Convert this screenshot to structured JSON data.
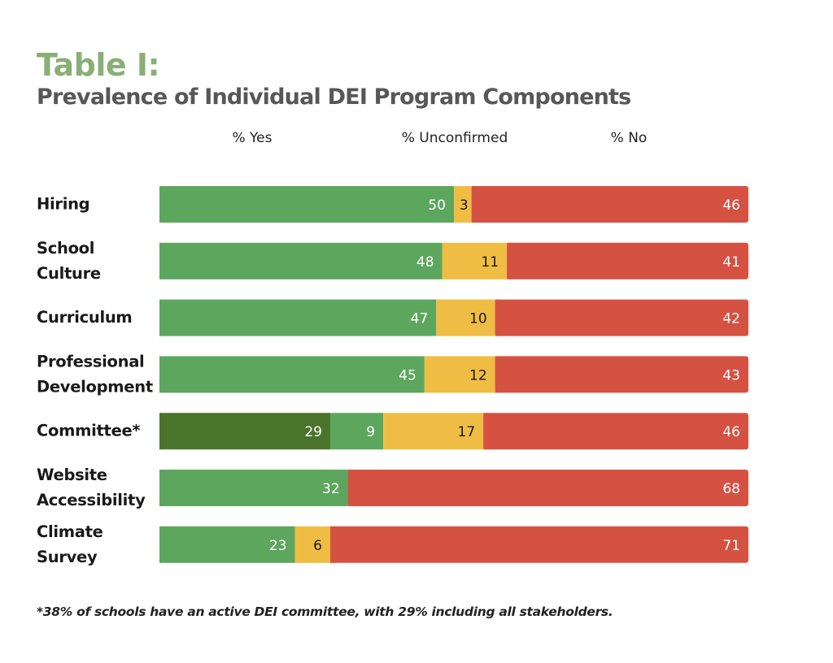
{
  "header": {
    "title": "Table I:",
    "subtitle": "Prevalence of Individual DEI Program Components"
  },
  "legend": [
    {
      "label": "% Yes",
      "color": "#5da65e"
    },
    {
      "label": "% Unconfirmed",
      "color": "#f0bd44"
    },
    {
      "label": "% No",
      "color": "#d55243"
    }
  ],
  "footnote": "*38% of schools have an active DEI committee, with 29% including all stakeholders.",
  "colors": {
    "yes": "#5da65e",
    "yes_all_stakeholders": "#4a742c",
    "unconfirmed": "#f0bd44",
    "no": "#d55243",
    "title_green": "#8aaf76",
    "subtitle_gray": "#575757"
  },
  "chart_data": {
    "type": "bar",
    "orientation": "horizontal",
    "stacked": true,
    "title": "Table I: Prevalence of Individual DEI Program Components",
    "xlabel": "",
    "ylabel": "",
    "xlim": [
      0,
      100
    ],
    "grid": false,
    "legend_position": "top",
    "categories": [
      [
        "Hiring"
      ],
      [
        "School",
        "Culture"
      ],
      [
        "Curriculum"
      ],
      [
        "Professional",
        "Development"
      ],
      [
        "Committee*"
      ],
      [
        "Website",
        "Accessibility"
      ],
      [
        "Climate",
        "Survey"
      ]
    ],
    "series": [
      {
        "name": "% Yes (all stakeholders)",
        "key": "yes_all_stakeholders",
        "values": [
          null,
          null,
          null,
          null,
          29,
          null,
          null
        ]
      },
      {
        "name": "% Yes",
        "key": "yes",
        "values": [
          50,
          48,
          47,
          45,
          9,
          32,
          23
        ]
      },
      {
        "name": "% Unconfirmed",
        "key": "unconfirmed",
        "values": [
          3,
          11,
          10,
          12,
          17,
          null,
          6
        ]
      },
      {
        "name": "% No",
        "key": "no",
        "values": [
          46,
          41,
          42,
          43,
          46,
          68,
          71
        ]
      }
    ]
  }
}
